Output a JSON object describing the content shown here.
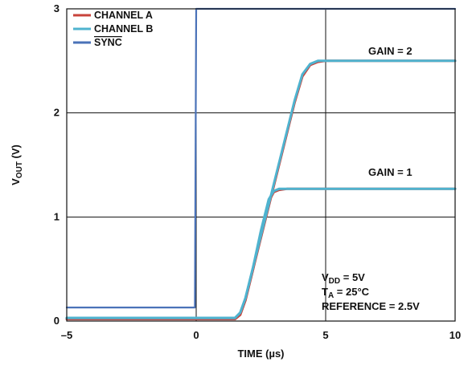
{
  "chart_data": {
    "type": "line",
    "xlabel": "TIME (µs)",
    "ylabel_main": "V",
    "ylabel_sub": "OUT",
    "ylabel_unit": " (V)",
    "xlim": [
      -5,
      10
    ],
    "ylim": [
      0,
      3
    ],
    "xticks": [
      -5,
      0,
      5,
      10
    ],
    "xtick_labels": [
      "–5",
      "0",
      "5",
      "10"
    ],
    "yticks": [
      0,
      1,
      2,
      3
    ],
    "ytick_labels": [
      "0",
      "1",
      "2",
      "3"
    ],
    "grid": true,
    "legend_position": "top-left",
    "colors": {
      "channel_a": "#c8433b",
      "channel_b": "#4fb3cf",
      "sync": "#4a72b8"
    },
    "series": [
      {
        "name": "CHANNEL A",
        "key": "channel_a",
        "x": [
          -5,
          1.5,
          1.7,
          1.9,
          2.2,
          2.6,
          3.0,
          3.4,
          3.8,
          4.1,
          4.4,
          4.7,
          5.0,
          7.5,
          10
        ],
        "y": [
          0.02,
          0.02,
          0.06,
          0.2,
          0.5,
          0.9,
          1.3,
          1.7,
          2.1,
          2.35,
          2.46,
          2.49,
          2.5,
          2.5,
          2.5
        ]
      },
      {
        "name": "CHANNEL A",
        "key": "channel_a",
        "x": [
          -5,
          1.5,
          1.7,
          1.9,
          2.2,
          2.5,
          2.8,
          3.0,
          3.2,
          3.5,
          4.0,
          7.0,
          10
        ],
        "y": [
          0.02,
          0.02,
          0.06,
          0.2,
          0.5,
          0.85,
          1.15,
          1.24,
          1.26,
          1.27,
          1.27,
          1.27,
          1.27
        ]
      },
      {
        "name": "CHANNEL B",
        "key": "channel_b",
        "x": [
          -5,
          1.5,
          1.7,
          1.9,
          2.2,
          2.6,
          3.0,
          3.4,
          3.8,
          4.1,
          4.4,
          4.7,
          5.0,
          7.5,
          10
        ],
        "y": [
          0.03,
          0.03,
          0.08,
          0.22,
          0.52,
          0.92,
          1.32,
          1.72,
          2.12,
          2.37,
          2.47,
          2.5,
          2.5,
          2.5,
          2.5
        ]
      },
      {
        "name": "CHANNEL B",
        "key": "channel_b",
        "x": [
          -5,
          1.5,
          1.7,
          1.9,
          2.2,
          2.5,
          2.8,
          3.0,
          3.2,
          3.5,
          4.0,
          7.0,
          10
        ],
        "y": [
          0.03,
          0.03,
          0.08,
          0.22,
          0.52,
          0.87,
          1.17,
          1.25,
          1.27,
          1.27,
          1.27,
          1.27,
          1.27
        ]
      },
      {
        "name": "SYNC",
        "key": "sync",
        "x": [
          -5,
          -0.05,
          0,
          0.05,
          10
        ],
        "y": [
          0.13,
          0.13,
          3.0,
          3.0,
          3.0
        ]
      }
    ],
    "legend": [
      {
        "label": "CHANNEL A",
        "key": "channel_a",
        "overline": false
      },
      {
        "label": "CHANNEL B",
        "key": "channel_b",
        "overline": false
      },
      {
        "label": "SYNC",
        "key": "sync",
        "overline": true
      }
    ],
    "annotations": {
      "gain2": "GAIN = 2",
      "gain1": "GAIN = 1",
      "vdd_main": "V",
      "vdd_sub": "DD",
      "vdd_val": " = 5V",
      "ta_main": "T",
      "ta_sub": "A",
      "ta_val": " = 25°C",
      "reference": "REFERENCE = 2.5V"
    }
  }
}
